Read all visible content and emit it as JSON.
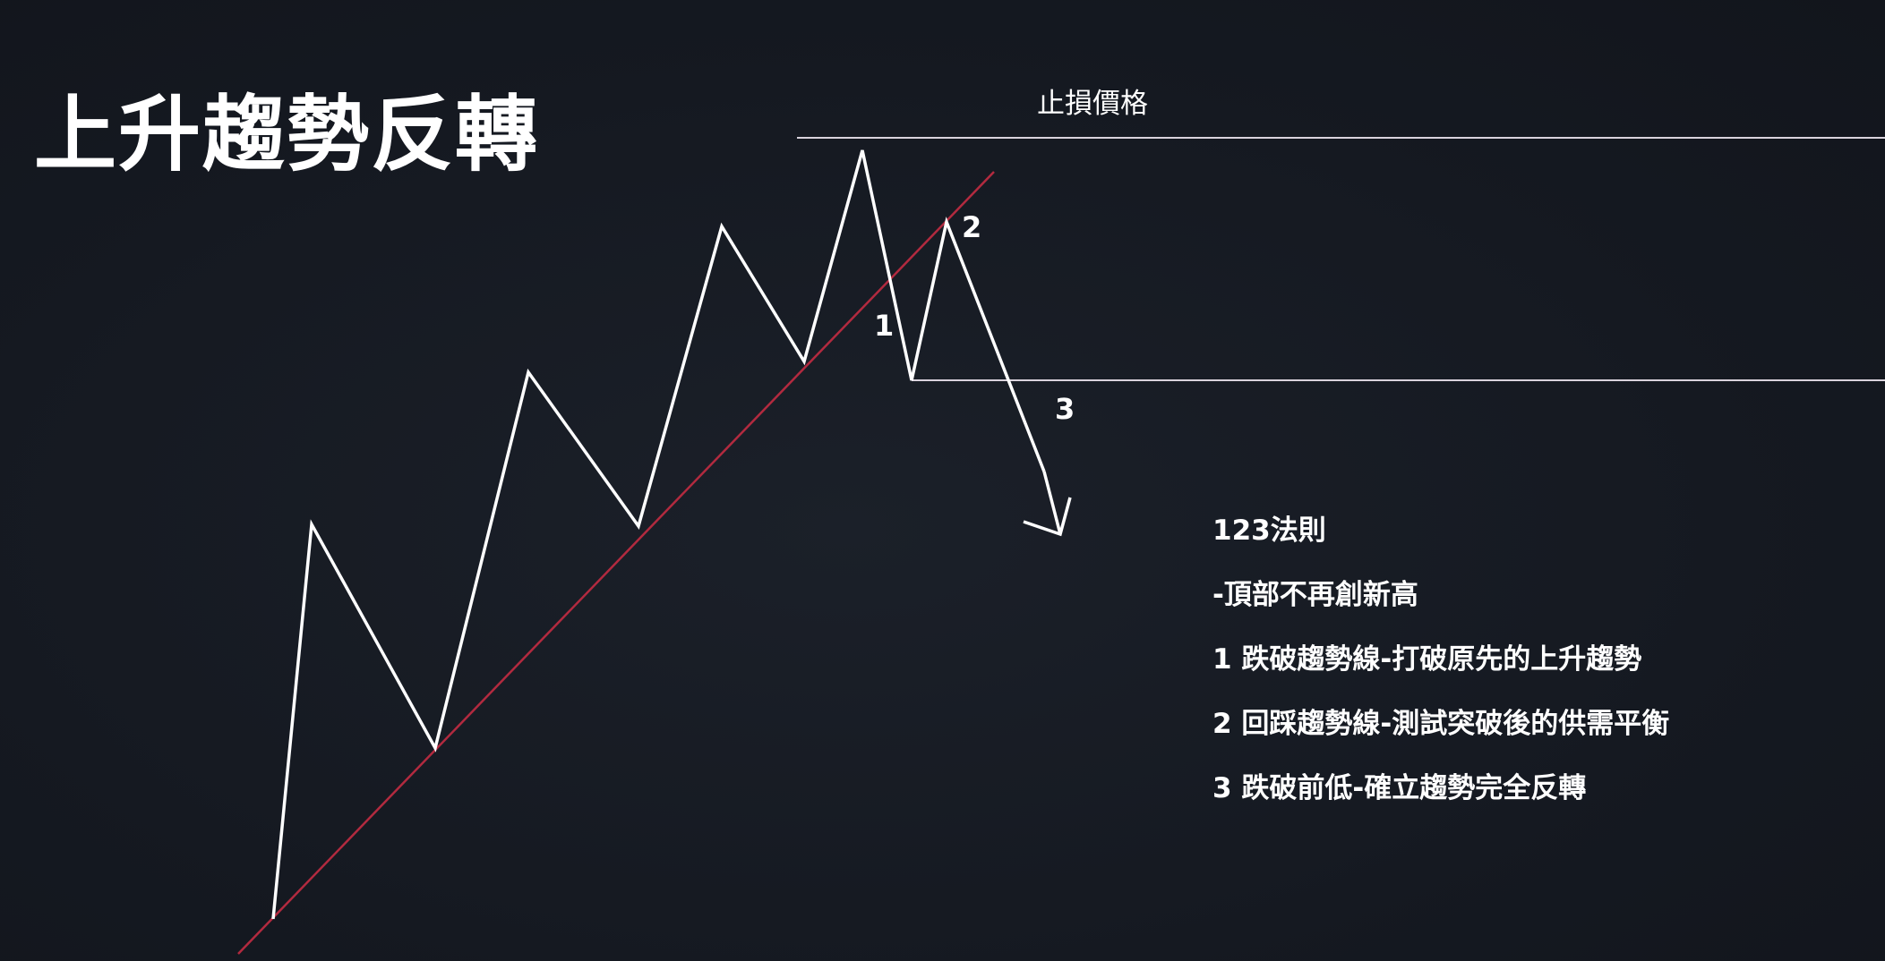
{
  "title": "上升趨勢反轉",
  "stop_price_label": "止損價格",
  "markers": {
    "m1": "1",
    "m2": "2",
    "m3": "3"
  },
  "notes": [
    "123法則",
    "-頂部不再創新高",
    "1  跌破趨勢線-打破原先的上升趨勢",
    "2  回踩趨勢線-測試突破後的供需平衡",
    "3  跌破前低-確立趨勢完全反轉"
  ],
  "colors": {
    "background": "#161a23",
    "price_line": "#ffffff",
    "trend_line": "#b22a3f",
    "level_lines": "#d9d2dc",
    "text": "#ffffff"
  }
}
